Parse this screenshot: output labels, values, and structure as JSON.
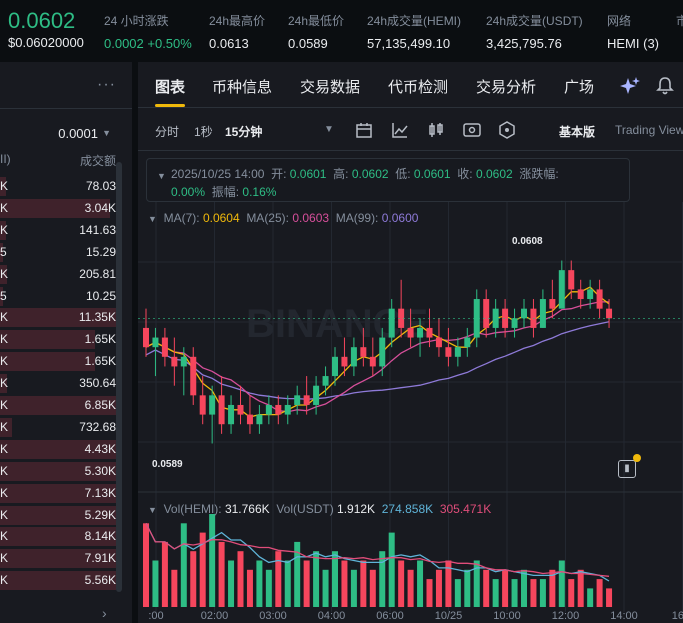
{
  "ticker": {
    "price": "0.0602",
    "price_usd": "$0.06020000",
    "stats": [
      {
        "label": "24 小时涨跌",
        "value": "0.0002 +0.50%",
        "green": true
      },
      {
        "label": "24h最高价",
        "value": "0.0613",
        "green": false
      },
      {
        "label": "24h最低价",
        "value": "0.0589",
        "green": false
      },
      {
        "label": "24h成交量(HEMI)",
        "value": "57,135,499.10",
        "green": false
      },
      {
        "label": "24h成交量(USDT)",
        "value": "3,425,795.76",
        "green": false
      },
      {
        "label": "网络",
        "value": "HEMI (3)",
        "green": false
      },
      {
        "label": "市",
        "value": "",
        "green": false
      }
    ]
  },
  "orderbook": {
    "more_icon": "more-dots-icon",
    "precision": "0.0001",
    "header_left": "II)",
    "header_right": "成交额",
    "rows": [
      {
        "left": "K",
        "right": "78.03",
        "depth": 0.05
      },
      {
        "left": "K",
        "right": "3.04K",
        "depth": 0.95
      },
      {
        "left": "K",
        "right": "141.63",
        "depth": 0.05
      },
      {
        "left": "5",
        "right": "15.29",
        "depth": 0.03
      },
      {
        "left": "K",
        "right": "205.81",
        "depth": 0.06
      },
      {
        "left": "5",
        "right": "10.25",
        "depth": 0.03
      },
      {
        "left": "K",
        "right": "11.35K",
        "depth": 1.0
      },
      {
        "left": "K",
        "right": "1.65K",
        "depth": 0.82
      },
      {
        "left": "K",
        "right": "1.65K",
        "depth": 0.82
      },
      {
        "left": "K",
        "right": "350.64",
        "depth": 0.06
      },
      {
        "left": "K",
        "right": "6.85K",
        "depth": 1.0
      },
      {
        "left": "K",
        "right": "732.68",
        "depth": 0.1
      },
      {
        "left": "K",
        "right": "4.43K",
        "depth": 1.0
      },
      {
        "left": "K",
        "right": "5.30K",
        "depth": 1.0
      },
      {
        "left": "K",
        "right": "7.13K",
        "depth": 1.0
      },
      {
        "left": "K",
        "right": "5.29K",
        "depth": 1.0
      },
      {
        "left": "K",
        "right": "8.14K",
        "depth": 1.0
      },
      {
        "left": "K",
        "right": "7.91K",
        "depth": 1.0
      },
      {
        "left": "K",
        "right": "5.56K",
        "depth": 1.0
      }
    ],
    "next_icon": "chevron-right-icon"
  },
  "tabs": [
    {
      "label": "图表",
      "active": true
    },
    {
      "label": "币种信息",
      "active": false
    },
    {
      "label": "交易数据",
      "active": false
    },
    {
      "label": "代币检测",
      "active": false
    },
    {
      "label": "交易分析",
      "active": false
    },
    {
      "label": "广场",
      "active": false
    }
  ],
  "toolbar": {
    "timeframes": [
      "分时",
      "1秒",
      "15分钟"
    ],
    "selected": "15分钟",
    "icons": [
      "calendar-icon",
      "indicator-icon",
      "candle-type-icon",
      "settings-icon",
      "hexagon-icon"
    ],
    "view_basic": "基本版",
    "view_tv": "Trading View"
  },
  "ohlc": {
    "time": "2025/10/25 14:00",
    "open_label": "开:",
    "open": "0.0601",
    "high_label": "高:",
    "high": "0.0602",
    "low_label": "低:",
    "low": "0.0601",
    "close_label": "收:",
    "close": "0.0602",
    "change_label": "涨跌幅:",
    "change": "0.00%",
    "amp_label": "振幅:",
    "amp": "0.16%"
  },
  "ma": {
    "ma7_label": "MA(7):",
    "ma7": "0.0604",
    "ma25_label": "MA(25):",
    "ma25": "0.0603",
    "ma99_label": "MA(99):",
    "ma99": "0.0600",
    "colors": {
      "ma7": "#f0b90b",
      "ma25": "#d64f9a",
      "ma99": "#8e7ad8"
    }
  },
  "vol": {
    "hemi_label": "Vol(HEMI):",
    "hemi": "31.766K",
    "usdt_label": "Vol(USDT)",
    "usdt": "1.912K",
    "ma1": "274.858K",
    "ma2": "305.471K",
    "colors": {
      "ma1": "#5fb4d8",
      "ma2": "#e04d7a"
    }
  },
  "chart_labels": {
    "high": "0.0608",
    "low": "0.0589",
    "watermark": "BINANCE"
  },
  "chart_data": {
    "type": "candlestick",
    "x_ticks": [
      ":00",
      "02:00",
      "03:00",
      "04:00",
      "06:00",
      "10/25",
      "10:00",
      "12:00",
      "14:00",
      "16:0"
    ],
    "ylim": [
      0.0585,
      0.0612
    ],
    "candles": [
      {
        "o": 0.0601,
        "h": 0.0603,
        "l": 0.0598,
        "c": 0.0599
      },
      {
        "o": 0.0599,
        "h": 0.0601,
        "l": 0.0596,
        "c": 0.06
      },
      {
        "o": 0.06,
        "h": 0.0601,
        "l": 0.0597,
        "c": 0.0598
      },
      {
        "o": 0.0598,
        "h": 0.06,
        "l": 0.0595,
        "c": 0.0597
      },
      {
        "o": 0.0597,
        "h": 0.0599,
        "l": 0.0594,
        "c": 0.0598
      },
      {
        "o": 0.0598,
        "h": 0.0599,
        "l": 0.0593,
        "c": 0.0594
      },
      {
        "o": 0.0594,
        "h": 0.0596,
        "l": 0.0591,
        "c": 0.0592
      },
      {
        "o": 0.0592,
        "h": 0.0595,
        "l": 0.0589,
        "c": 0.0594
      },
      {
        "o": 0.0594,
        "h": 0.0596,
        "l": 0.059,
        "c": 0.0591
      },
      {
        "o": 0.0591,
        "h": 0.0594,
        "l": 0.059,
        "c": 0.0593
      },
      {
        "o": 0.0593,
        "h": 0.0595,
        "l": 0.0591,
        "c": 0.0592
      },
      {
        "o": 0.0592,
        "h": 0.0594,
        "l": 0.059,
        "c": 0.0591
      },
      {
        "o": 0.0591,
        "h": 0.0593,
        "l": 0.059,
        "c": 0.0592
      },
      {
        "o": 0.0592,
        "h": 0.0594,
        "l": 0.0591,
        "c": 0.0593
      },
      {
        "o": 0.0593,
        "h": 0.0594,
        "l": 0.0591,
        "c": 0.0592
      },
      {
        "o": 0.0592,
        "h": 0.0594,
        "l": 0.0591,
        "c": 0.0593
      },
      {
        "o": 0.0593,
        "h": 0.0595,
        "l": 0.0592,
        "c": 0.0594
      },
      {
        "o": 0.0594,
        "h": 0.0596,
        "l": 0.0592,
        "c": 0.0593
      },
      {
        "o": 0.0593,
        "h": 0.0596,
        "l": 0.0592,
        "c": 0.0595
      },
      {
        "o": 0.0595,
        "h": 0.0597,
        "l": 0.0594,
        "c": 0.0596
      },
      {
        "o": 0.0596,
        "h": 0.0599,
        "l": 0.0595,
        "c": 0.0598
      },
      {
        "o": 0.0598,
        "h": 0.06,
        "l": 0.0596,
        "c": 0.0597
      },
      {
        "o": 0.0597,
        "h": 0.06,
        "l": 0.0596,
        "c": 0.0599
      },
      {
        "o": 0.0599,
        "h": 0.0601,
        "l": 0.0597,
        "c": 0.0598
      },
      {
        "o": 0.0598,
        "h": 0.06,
        "l": 0.0596,
        "c": 0.0597
      },
      {
        "o": 0.0597,
        "h": 0.0601,
        "l": 0.0596,
        "c": 0.06
      },
      {
        "o": 0.06,
        "h": 0.0604,
        "l": 0.0599,
        "c": 0.0603
      },
      {
        "o": 0.0603,
        "h": 0.0606,
        "l": 0.06,
        "c": 0.0601
      },
      {
        "o": 0.0601,
        "h": 0.0603,
        "l": 0.0599,
        "c": 0.06
      },
      {
        "o": 0.06,
        "h": 0.0602,
        "l": 0.0598,
        "c": 0.0601
      },
      {
        "o": 0.0601,
        "h": 0.0603,
        "l": 0.0599,
        "c": 0.06
      },
      {
        "o": 0.06,
        "h": 0.0602,
        "l": 0.0598,
        "c": 0.0599
      },
      {
        "o": 0.0599,
        "h": 0.0601,
        "l": 0.0597,
        "c": 0.0598
      },
      {
        "o": 0.0598,
        "h": 0.06,
        "l": 0.0597,
        "c": 0.0599
      },
      {
        "o": 0.0599,
        "h": 0.0601,
        "l": 0.0598,
        "c": 0.06
      },
      {
        "o": 0.06,
        "h": 0.0605,
        "l": 0.0599,
        "c": 0.0604
      },
      {
        "o": 0.0604,
        "h": 0.0605,
        "l": 0.06,
        "c": 0.0601
      },
      {
        "o": 0.0601,
        "h": 0.0604,
        "l": 0.06,
        "c": 0.0603
      },
      {
        "o": 0.0603,
        "h": 0.0604,
        "l": 0.06,
        "c": 0.0601
      },
      {
        "o": 0.0601,
        "h": 0.0603,
        "l": 0.06,
        "c": 0.0602
      },
      {
        "o": 0.0602,
        "h": 0.0604,
        "l": 0.0601,
        "c": 0.0603
      },
      {
        "o": 0.0603,
        "h": 0.0604,
        "l": 0.06,
        "c": 0.0601
      },
      {
        "o": 0.0601,
        "h": 0.0605,
        "l": 0.0601,
        "c": 0.0604
      },
      {
        "o": 0.0604,
        "h": 0.0606,
        "l": 0.0602,
        "c": 0.0603
      },
      {
        "o": 0.0603,
        "h": 0.0608,
        "l": 0.0603,
        "c": 0.0607
      },
      {
        "o": 0.0607,
        "h": 0.0608,
        "l": 0.0604,
        "c": 0.0605
      },
      {
        "o": 0.0605,
        "h": 0.0606,
        "l": 0.0603,
        "c": 0.0604
      },
      {
        "o": 0.0604,
        "h": 0.0606,
        "l": 0.0603,
        "c": 0.0605
      },
      {
        "o": 0.0605,
        "h": 0.0606,
        "l": 0.0602,
        "c": 0.0603
      },
      {
        "o": 0.0603,
        "h": 0.0604,
        "l": 0.0601,
        "c": 0.0602
      }
    ],
    "volume_hemi": [
      0.9,
      0.5,
      0.7,
      0.4,
      0.9,
      0.6,
      0.8,
      1.0,
      0.7,
      0.5,
      0.6,
      0.4,
      0.5,
      0.4,
      0.6,
      0.5,
      0.7,
      0.5,
      0.6,
      0.4,
      0.6,
      0.5,
      0.4,
      0.5,
      0.4,
      0.6,
      0.8,
      0.5,
      0.4,
      0.5,
      0.3,
      0.4,
      0.5,
      0.3,
      0.4,
      0.5,
      0.4,
      0.3,
      0.4,
      0.3,
      0.4,
      0.3,
      0.3,
      0.4,
      0.5,
      0.3,
      0.4,
      0.2,
      0.3,
      0.2
    ]
  }
}
